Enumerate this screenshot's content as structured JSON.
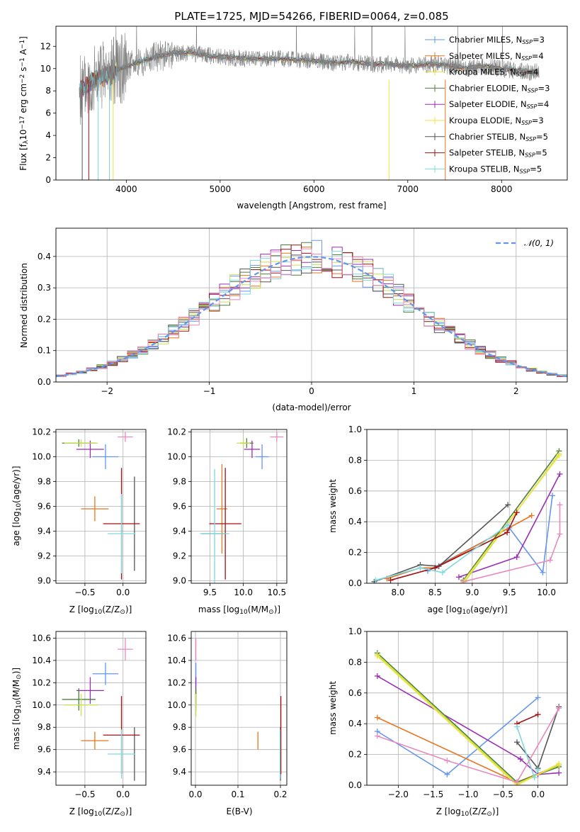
{
  "colors": {
    "blue": "#6495ED",
    "orange": "#E8741F",
    "purple": "#9A2DB5",
    "olive": "#4E7F3A",
    "yellowgreen": "#C8E04A",
    "yellow": "#F2E23A",
    "dark": "#555555",
    "darkred": "#A01010",
    "cyan": "#7FD9DD",
    "pink": "#E88AC0",
    "gray": "#808080",
    "grid": "#b0b0b0"
  },
  "chart_data": [
    {
      "id": "spectrum",
      "type": "line",
      "title": "PLATE=1725, MJD=54266, FIBERID=0064, z=0.085",
      "xlabel": "wavelength [Angstrom, rest frame]",
      "ylabel": "Flux [f_λ10^-17 erg cm^-2 s^-1 A^-1]",
      "ylabel_parts": {
        "a": "Flux [f",
        "b": "λ",
        "c": "10",
        "d": "−17",
        "e": " erg cm",
        "f": "−2",
        "g": " s",
        "h": "−1",
        "i": " A",
        "j": "−1",
        "k": "]"
      },
      "xlim": [
        3250,
        8700
      ],
      "ylim": [
        0,
        13.8
      ],
      "xticks": [
        "4000",
        "5000",
        "6000",
        "7000",
        "8000"
      ],
      "yticks": [
        "0",
        "2",
        "4",
        "6",
        "8",
        "10",
        "12"
      ],
      "grid": false,
      "legend_position": "right",
      "legend": [
        {
          "base": "Chabrier MILES, N",
          "sub": "SSP",
          "tail": "=3",
          "color": "blue"
        },
        {
          "base": "Salpeter MILES, N",
          "sub": "SSP",
          "tail": "=4",
          "color": "orange"
        },
        {
          "base": "Kroupa MILES, N",
          "sub": "SSP",
          "tail": "=4",
          "color": "yellow"
        },
        {
          "base": "Chabrier ELODIE, N",
          "sub": "SSP",
          "tail": "=3",
          "color": "olive"
        },
        {
          "base": "Salpeter ELODIE, N",
          "sub": "SSP",
          "tail": "=4",
          "color": "purple"
        },
        {
          "base": "Kroupa ELODIE, N",
          "sub": "SSP",
          "tail": "=3",
          "color": "yellow"
        },
        {
          "base": "Chabrier STELIB, N",
          "sub": "SSP",
          "tail": "=5",
          "color": "dark"
        },
        {
          "base": "Salpeter STELIB, N",
          "sub": "SSP",
          "tail": "=5",
          "color": "darkred"
        },
        {
          "base": "Kroupa STELIB, N",
          "sub": "SSP",
          "tail": "=5",
          "color": "cyan"
        }
      ],
      "continuum": [
        [
          3500,
          8.0
        ],
        [
          3650,
          9.0
        ],
        [
          3800,
          9.5
        ],
        [
          3950,
          10.0
        ],
        [
          4100,
          10.5
        ],
        [
          4300,
          11.0
        ],
        [
          4500,
          11.4
        ],
        [
          4700,
          11.4
        ],
        [
          4900,
          11.1
        ],
        [
          5100,
          11.0
        ],
        [
          5300,
          10.9
        ],
        [
          5500,
          10.9
        ],
        [
          5800,
          10.8
        ],
        [
          6000,
          10.7
        ],
        [
          6200,
          10.5
        ],
        [
          6400,
          10.6
        ],
        [
          6600,
          10.4
        ],
        [
          6800,
          10.4
        ],
        [
          7000,
          10.2
        ],
        [
          7200,
          10.4
        ],
        [
          7400,
          10.3
        ],
        [
          7600,
          10.0
        ],
        [
          7800,
          10.2
        ],
        [
          8000,
          10.0
        ],
        [
          8200,
          9.8
        ],
        [
          8300,
          9.7
        ]
      ]
    },
    {
      "id": "residuals",
      "type": "step",
      "xlabel": "(data-model)/error",
      "ylabel": "Normed distribution",
      "xlim": [
        -2.5,
        2.5
      ],
      "ylim": [
        0,
        0.49
      ],
      "xticks": [
        "−2",
        "−1",
        "0",
        "1",
        "2"
      ],
      "yticks": [
        "0.0",
        "0.1",
        "0.2",
        "0.3",
        "0.4"
      ],
      "grid": true,
      "legend": [
        {
          "label": "𝒩(0, 1)",
          "color": "blue",
          "style": "dashed"
        }
      ],
      "bin_width": 0.1
    },
    {
      "id": "age-vs-Z",
      "type": "errorbar",
      "xlabel": "Z [log10(Z/Z⊙)]",
      "xlabel_parts": {
        "a": "Z [log",
        "b": "10",
        "c": "(Z/Z",
        "d": "⊙",
        "e": ")]"
      },
      "ylabel": "age [log10(age/yr)]",
      "ylabel_parts": {
        "a": "age  [log",
        "b": "10",
        "c": "(age/yr)]"
      },
      "xlim": [
        -0.88,
        0.3
      ],
      "ylim": [
        8.98,
        10.22
      ],
      "xticks": [
        "−0.5",
        "0.0"
      ],
      "xtick_values": [
        -0.5,
        0.0
      ],
      "yticks": [
        "9.0",
        "9.2",
        "9.4",
        "9.6",
        "9.8",
        "10.0",
        "10.2"
      ],
      "points": [
        {
          "x": -0.23,
          "xerr": 0.17,
          "y": 10.0,
          "yerr": 0.1,
          "color": "blue"
        },
        {
          "x": -0.37,
          "xerr": 0.18,
          "y": 9.58,
          "yerr": 0.1,
          "color": "orange"
        },
        {
          "x": -0.43,
          "xerr": 0.18,
          "y": 10.06,
          "yerr": 0.07,
          "color": "purple"
        },
        {
          "x": -0.58,
          "xerr": 0.22,
          "y": 10.11,
          "yerr": 0.03,
          "color": "olive"
        },
        {
          "x": -0.55,
          "xerr": 0.22,
          "y": 10.11,
          "yerr": 0.03,
          "color": "yellowgreen"
        },
        {
          "x": 0.15,
          "xerr": 0.0,
          "y": 9.46,
          "yerr": 0.38,
          "color": "dark"
        },
        {
          "x": -0.02,
          "xerr": 0.24,
          "y": 9.46,
          "yerr": 0.45,
          "color": "darkred"
        },
        {
          "x": -0.02,
          "xerr": 0.18,
          "y": 9.38,
          "yerr": 0.32,
          "color": "cyan"
        },
        {
          "x": 0.03,
          "xerr": 0.1,
          "y": 10.16,
          "yerr": 0.04,
          "color": "pink"
        }
      ]
    },
    {
      "id": "age-vs-mass",
      "type": "errorbar",
      "xlabel": "mass [log10(M/M⊙)]",
      "xlabel_parts": {
        "a": "mass [log",
        "b": "10",
        "c": "(M/M",
        "d": "⊙",
        "e": ")]"
      },
      "xlim": [
        9.22,
        10.65
      ],
      "ylim": [
        8.98,
        10.22
      ],
      "xticks": [
        "9.5",
        "10.0",
        "10.5"
      ],
      "xtick_values": [
        9.5,
        10.0,
        10.5
      ],
      "yticks": [
        "9.0",
        "9.2",
        "9.4",
        "9.6",
        "9.8",
        "10.0",
        "10.2"
      ],
      "points": [
        {
          "x": 10.28,
          "xerr": 0.1,
          "y": 10.0,
          "yerr": 0.1,
          "color": "blue"
        },
        {
          "x": 9.68,
          "xerr": 0.08,
          "y": 9.58,
          "yerr": 0.36,
          "color": "orange"
        },
        {
          "x": 10.13,
          "xerr": 0.12,
          "y": 10.06,
          "yerr": 0.07,
          "color": "purple"
        },
        {
          "x": 10.05,
          "xerr": 0.1,
          "y": 10.11,
          "yerr": 0.04,
          "color": "olive"
        },
        {
          "x": 10.0,
          "xerr": 0.1,
          "y": 10.11,
          "yerr": 0.04,
          "color": "yellowgreen"
        },
        {
          "x": 9.56,
          "xerr": 0.18,
          "y": 9.38,
          "yerr": 0.0,
          "color": "dark"
        },
        {
          "x": 9.73,
          "xerr": 0.24,
          "y": 9.46,
          "yerr": 0.45,
          "color": "darkred"
        },
        {
          "x": 9.57,
          "xerr": 0.22,
          "y": 9.38,
          "yerr": 0.52,
          "color": "cyan"
        },
        {
          "x": 10.5,
          "xerr": 0.1,
          "y": 10.16,
          "yerr": 0.04,
          "color": "pink"
        }
      ]
    },
    {
      "id": "weight-vs-age",
      "type": "line",
      "xlabel": "age  [log10(age/yr)]",
      "xlabel_parts": {
        "a": "age  [log",
        "b": "10",
        "c": "(age/yr)]"
      },
      "ylabel": "mass weight",
      "xlim": [
        7.58,
        10.28
      ],
      "ylim": [
        0,
        1.0
      ],
      "xticks": [
        "8.0",
        "8.5",
        "9.0",
        "9.5",
        "10.0"
      ],
      "xtick_values": [
        8.0,
        8.5,
        9.0,
        9.5,
        10.0
      ],
      "yticks": [
        "0.0",
        "0.2",
        "0.4",
        "0.6",
        "0.8",
        "1.0"
      ],
      "grid": true,
      "series": [
        {
          "color": "blue",
          "x": [
            8.4,
            9.5,
            9.95,
            10.08
          ],
          "y": [
            0.08,
            0.36,
            0.07,
            0.57
          ]
        },
        {
          "color": "orange",
          "x": [
            7.85,
            8.3,
            8.5,
            9.8
          ],
          "y": [
            0.03,
            0.1,
            0.1,
            0.44
          ]
        },
        {
          "color": "purple",
          "x": [
            8.82,
            9.6,
            10.18
          ],
          "y": [
            0.04,
            0.17,
            0.71
          ]
        },
        {
          "color": "olive",
          "x": [
            8.88,
            10.17
          ],
          "y": [
            0.02,
            0.86
          ]
        },
        {
          "color": "yellowgreen",
          "x": [
            8.9,
            10.17
          ],
          "y": [
            0.01,
            0.84
          ]
        },
        {
          "color": "yellow",
          "x": [
            8.86,
            10.17
          ],
          "y": [
            0.0,
            0.83
          ]
        },
        {
          "color": "dark",
          "x": [
            7.68,
            8.3,
            8.55,
            9.48
          ],
          "y": [
            0.01,
            0.12,
            0.11,
            0.51
          ]
        },
        {
          "color": "darkred",
          "x": [
            7.9,
            8.5,
            9.47,
            9.6
          ],
          "y": [
            0.02,
            0.1,
            0.33,
            0.46
          ]
        },
        {
          "color": "cyan",
          "x": [
            7.7,
            8.3,
            8.6,
            9.48
          ],
          "y": [
            0.02,
            0.1,
            0.07,
            0.38
          ]
        },
        {
          "color": "pink",
          "x": [
            8.88,
            10.05,
            10.18,
            10.18
          ],
          "y": [
            0.01,
            0.15,
            0.32,
            0.51
          ]
        }
      ]
    },
    {
      "id": "mass-vs-Z",
      "type": "errorbar",
      "xlabel": "Z [log10(Z/Z⊙)]",
      "xlabel_parts": {
        "a": "Z [log",
        "b": "10",
        "c": "(Z/Z",
        "d": "⊙",
        "e": ")]"
      },
      "ylabel": "mass [log10(M/M⊙)]",
      "ylabel_parts": {
        "a": "mass [log",
        "b": "10",
        "c": "(M/M",
        "d": "⊙",
        "e": ")]"
      },
      "xlim": [
        -0.88,
        0.3
      ],
      "ylim": [
        9.28,
        10.66
      ],
      "xticks": [
        "−0.5",
        "0.0"
      ],
      "xtick_values": [
        -0.5,
        0.0
      ],
      "yticks": [
        "9.4",
        "9.6",
        "9.8",
        "10.0",
        "10.2",
        "10.4",
        "10.6"
      ],
      "points": [
        {
          "x": -0.23,
          "xerr": 0.17,
          "y": 10.28,
          "yerr": 0.1,
          "color": "blue"
        },
        {
          "x": -0.37,
          "xerr": 0.18,
          "y": 9.68,
          "yerr": 0.08,
          "color": "orange"
        },
        {
          "x": -0.43,
          "xerr": 0.18,
          "y": 10.13,
          "yerr": 0.12,
          "color": "purple"
        },
        {
          "x": -0.58,
          "xerr": 0.22,
          "y": 10.05,
          "yerr": 0.1,
          "color": "olive"
        },
        {
          "x": -0.55,
          "xerr": 0.22,
          "y": 10.0,
          "yerr": 0.1,
          "color": "yellowgreen"
        },
        {
          "x": 0.15,
          "xerr": 0.0,
          "y": 9.56,
          "yerr": 0.24,
          "color": "dark"
        },
        {
          "x": -0.02,
          "xerr": 0.24,
          "y": 9.73,
          "yerr": 0.35,
          "color": "darkred"
        },
        {
          "x": -0.02,
          "xerr": 0.18,
          "y": 9.56,
          "yerr": 0.22,
          "color": "cyan"
        },
        {
          "x": 0.03,
          "xerr": 0.1,
          "y": 10.5,
          "yerr": 0.1,
          "color": "pink"
        }
      ]
    },
    {
      "id": "mass-vs-ebv",
      "type": "errorbar",
      "xlabel": "E(B-V)",
      "xlim": [
        -0.01,
        0.215
      ],
      "ylim": [
        9.28,
        10.66
      ],
      "xticks": [
        "0.0",
        "0.1",
        "0.2"
      ],
      "xtick_values": [
        0.0,
        0.1,
        0.2
      ],
      "yticks": [
        "9.4",
        "9.6",
        "9.8",
        "10.0",
        "10.2",
        "10.4",
        "10.6"
      ],
      "points": [
        {
          "x": 0.001,
          "xerr": 0,
          "y": 10.28,
          "yerr": 0.1,
          "color": "blue"
        },
        {
          "x": 0.147,
          "xerr": 0,
          "y": 9.68,
          "yerr": 0.08,
          "color": "orange"
        },
        {
          "x": 0.001,
          "xerr": 0,
          "y": 10.13,
          "yerr": 0.12,
          "color": "purple"
        },
        {
          "x": 0.001,
          "xerr": 0,
          "y": 10.05,
          "yerr": 0.1,
          "color": "olive"
        },
        {
          "x": 0.001,
          "xerr": 0,
          "y": 10.0,
          "yerr": 0.1,
          "color": "yellowgreen"
        },
        {
          "x": 0.2,
          "xerr": 0,
          "y": 9.56,
          "yerr": 0.24,
          "color": "dark"
        },
        {
          "x": 0.201,
          "xerr": 0,
          "y": 9.73,
          "yerr": 0.35,
          "color": "darkred"
        },
        {
          "x": 0.199,
          "xerr": 0,
          "y": 9.56,
          "yerr": 0.22,
          "color": "cyan"
        },
        {
          "x": 0.001,
          "xerr": 0,
          "y": 10.5,
          "yerr": 0.1,
          "color": "pink"
        }
      ]
    },
    {
      "id": "weight-vs-Z",
      "type": "line",
      "xlabel": "Z [log10(Z/Z⊙)]",
      "xlabel_parts": {
        "a": "Z [log",
        "b": "10",
        "c": "(Z/Z",
        "d": "⊙",
        "e": ")]"
      },
      "ylabel": "mass weight",
      "xlim": [
        -2.45,
        0.42
      ],
      "ylim": [
        0,
        1.0
      ],
      "xticks": [
        "−2.0",
        "−1.5",
        "−1.0",
        "−0.5",
        "0.0"
      ],
      "xtick_values": [
        -2.0,
        -1.5,
        -1.0,
        -0.5,
        0.0
      ],
      "yticks": [
        "0.0",
        "0.2",
        "0.4",
        "0.6",
        "0.8",
        "1.0"
      ],
      "grid": true,
      "series": [
        {
          "color": "blue",
          "x": [
            -2.3,
            -1.3,
            0.0
          ],
          "y": [
            0.35,
            0.07,
            0.57
          ]
        },
        {
          "color": "orange",
          "x": [
            -2.3,
            -0.3,
            0.3
          ],
          "y": [
            0.44,
            0.02,
            0.13
          ]
        },
        {
          "color": "purple",
          "x": [
            -2.3,
            -0.25,
            0.0,
            0.3
          ],
          "y": [
            0.71,
            0.17,
            0.07,
            0.08
          ]
        },
        {
          "color": "olive",
          "x": [
            -2.3,
            -0.3,
            0.3
          ],
          "y": [
            0.86,
            0.02,
            0.12
          ]
        },
        {
          "color": "yellowgreen",
          "x": [
            -2.3,
            -0.3,
            0.3
          ],
          "y": [
            0.85,
            0.01,
            0.13
          ]
        },
        {
          "color": "yellow",
          "x": [
            -2.3,
            -0.3,
            0.3
          ],
          "y": [
            0.84,
            0.0,
            0.14
          ]
        },
        {
          "color": "dark",
          "x": [
            -0.3,
            0.0,
            0.3
          ],
          "y": [
            0.28,
            0.11,
            0.51
          ]
        },
        {
          "color": "darkred",
          "x": [
            -0.3,
            0.0
          ],
          "y": [
            0.4,
            0.46
          ]
        },
        {
          "color": "cyan",
          "x": [
            -0.3,
            -0.05,
            0.0
          ],
          "y": [
            0.38,
            0.05,
            0.1
          ]
        },
        {
          "color": "pink",
          "x": [
            -2.3,
            -1.3,
            -0.3,
            0.3
          ],
          "y": [
            0.32,
            0.16,
            0.02,
            0.5
          ]
        }
      ]
    }
  ]
}
